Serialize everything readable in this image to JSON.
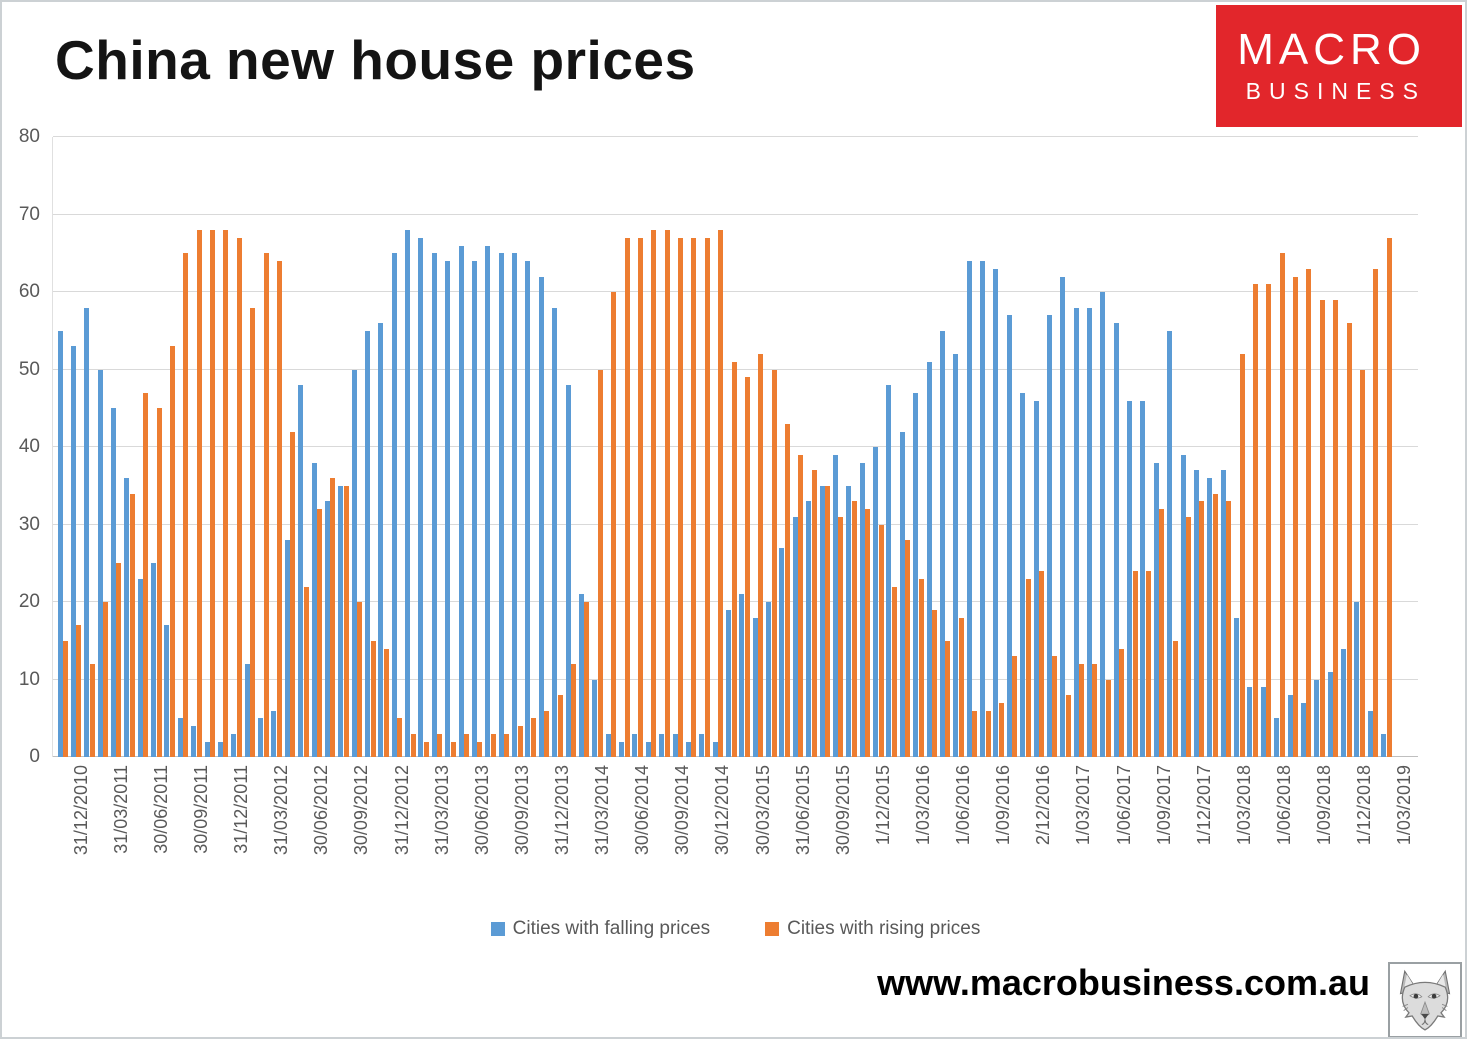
{
  "page": {
    "title": "China new house prices",
    "url_text": "www.macrobusiness.com.au"
  },
  "brand": {
    "line1": "MACRO",
    "line2": "BUSINESS",
    "bg_color": "#e2262b",
    "text_color": "#ffffff"
  },
  "colors": {
    "falling": "#5B9BD5",
    "rising": "#ED7D31",
    "axis_text": "#595959",
    "gridline": "#d9d9d9"
  },
  "legend": [
    {
      "label": "Cities with falling prices",
      "color": "#5B9BD5"
    },
    {
      "label": "Cities with rising prices",
      "color": "#ED7D31"
    }
  ],
  "icons": {
    "fox_logo": "fox-head-sketch"
  },
  "chart_data": {
    "type": "bar",
    "title": "China new house prices",
    "xlabel": "",
    "ylabel": "",
    "ylim": [
      0,
      80
    ],
    "y_ticks": [
      0,
      10,
      20,
      30,
      40,
      50,
      60,
      70,
      80
    ],
    "grid": true,
    "legend_position": "bottom",
    "x_tick_every_n_bars": 3,
    "x_tick_labels": [
      "31/12/2010",
      "31/03/2011",
      "30/06/2011",
      "30/09/2011",
      "31/12/2011",
      "31/03/2012",
      "30/06/2012",
      "30/09/2012",
      "31/12/2012",
      "31/03/2013",
      "30/06/2013",
      "30/09/2013",
      "31/12/2013",
      "31/03/2014",
      "30/06/2014",
      "30/09/2014",
      "30/12/2014",
      "30/03/2015",
      "31/06/2015",
      "30/09/2015",
      "1/12/2015",
      "1/03/2016",
      "1/06/2016",
      "1/09/2016",
      "2/12/2016",
      "1/03/2017",
      "1/06/2017",
      "1/09/2017",
      "1/12/2017",
      "1/03/2018",
      "1/06/2018",
      "1/09/2018",
      "1/12/2018",
      "1/03/2019"
    ],
    "series": [
      {
        "name": "Cities with falling prices",
        "color": "#5B9BD5",
        "values": [
          55,
          53,
          58,
          50,
          45,
          36,
          23,
          25,
          17,
          5,
          4,
          2,
          2,
          3,
          12,
          5,
          6,
          28,
          48,
          38,
          33,
          35,
          50,
          55,
          56,
          65,
          68,
          67,
          65,
          64,
          66,
          64,
          66,
          65,
          65,
          64,
          62,
          58,
          48,
          21,
          10,
          3,
          2,
          3,
          2,
          3,
          3,
          2,
          3,
          2,
          19,
          21,
          18,
          20,
          27,
          31,
          33,
          35,
          39,
          35,
          38,
          40,
          48,
          42,
          47,
          51,
          55,
          52,
          64,
          64,
          63,
          57,
          47,
          46,
          57,
          62,
          58,
          58,
          60,
          56,
          46,
          46,
          38,
          55,
          39,
          37,
          36,
          37,
          18,
          9,
          9,
          5,
          8,
          7,
          10,
          11,
          14,
          20,
          6,
          3
        ]
      },
      {
        "name": "Cities with rising prices",
        "color": "#ED7D31",
        "values": [
          15,
          17,
          12,
          20,
          25,
          34,
          47,
          45,
          53,
          65,
          68,
          68,
          68,
          67,
          58,
          65,
          64,
          42,
          22,
          32,
          36,
          35,
          20,
          15,
          14,
          5,
          3,
          2,
          3,
          2,
          3,
          2,
          3,
          3,
          4,
          5,
          6,
          8,
          12,
          20,
          50,
          60,
          67,
          67,
          68,
          68,
          67,
          67,
          67,
          68,
          51,
          49,
          52,
          50,
          43,
          39,
          37,
          35,
          31,
          33,
          32,
          30,
          22,
          28,
          23,
          19,
          15,
          18,
          6,
          6,
          7,
          13,
          23,
          24,
          13,
          8,
          12,
          12,
          10,
          14,
          24,
          24,
          32,
          15,
          31,
          33,
          34,
          33,
          52,
          61,
          61,
          65,
          62,
          63,
          59,
          59,
          56,
          50,
          63,
          67
        ]
      }
    ]
  }
}
